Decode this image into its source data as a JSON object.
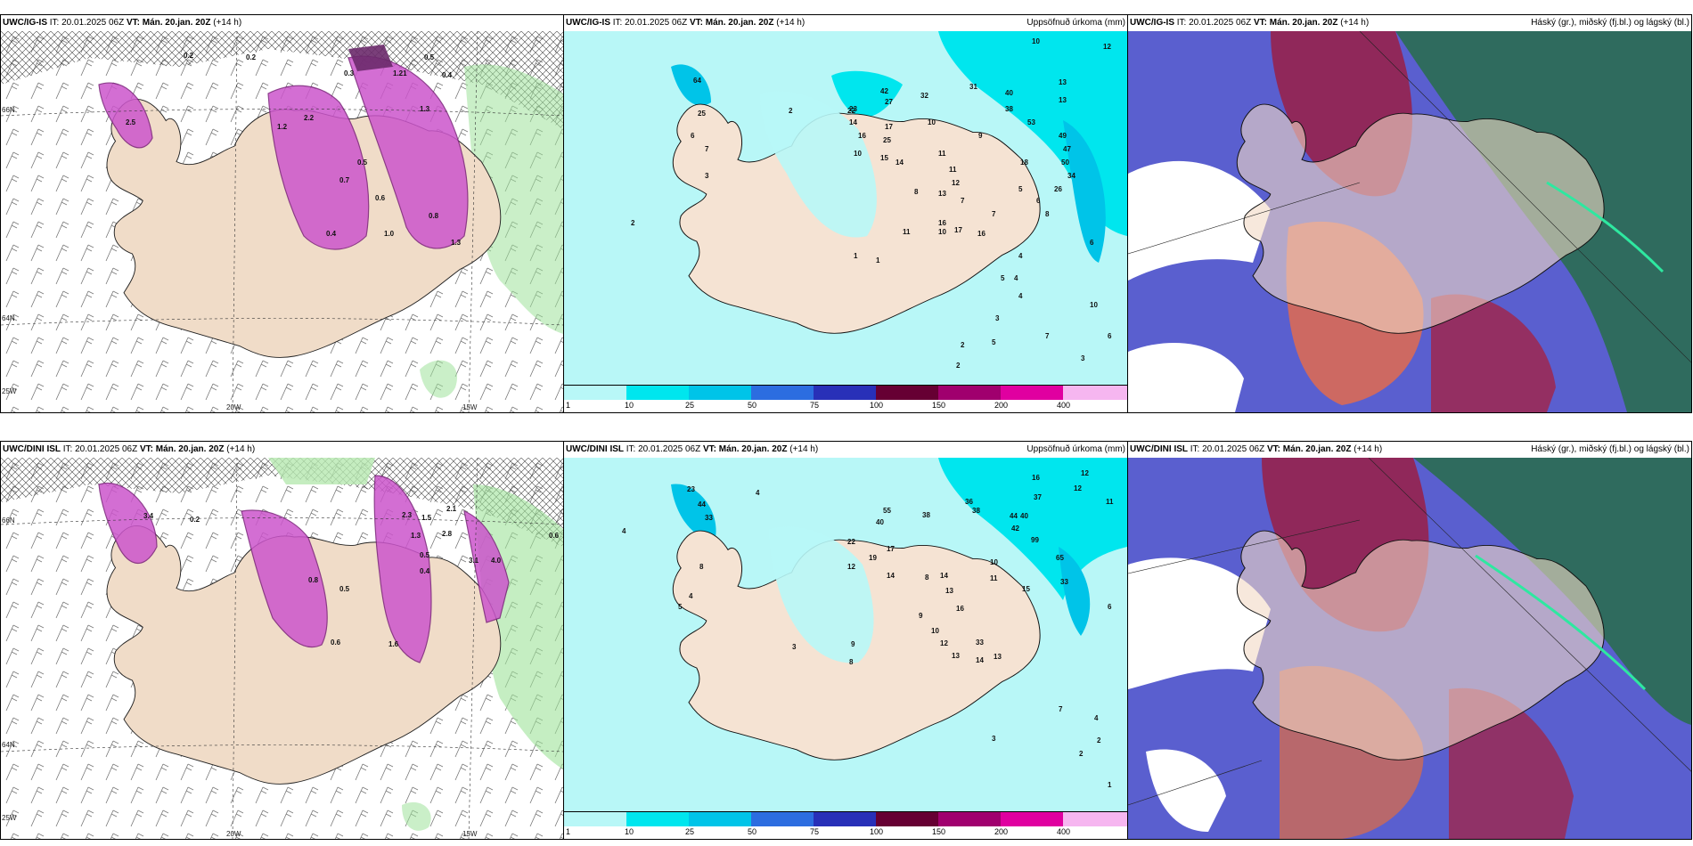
{
  "panels": [
    {
      "model": "UWC/IG-IS",
      "it": "IT: 20.01.2025 06Z",
      "vt_prefix": "VT:",
      "vt": "Mán. 20.jan. 20Z",
      "lead": "(+14 h)",
      "right": ""
    },
    {
      "model": "UWC/IG-IS",
      "it": "IT: 20.01.2025 06Z",
      "vt_prefix": "VT:",
      "vt": "Mán. 20.jan. 20Z",
      "lead": "(+14 h)",
      "right": "Uppsöfnuð úrkoma (mm)"
    },
    {
      "model": "UWC/IG-IS",
      "it": "IT: 20.01.2025 06Z",
      "vt_prefix": "VT:",
      "vt": "Mán. 20.jan. 20Z",
      "lead": "(+14 h)",
      "right": "Háský (gr.), miðský (fj.bl.) og lágský (bl.)"
    },
    {
      "model": "UWC/DINI ISL",
      "it": "IT: 20.01.2025 06Z",
      "vt_prefix": "VT:",
      "vt": "Mán. 20.jan. 20Z",
      "lead": "(+14 h)",
      "right": ""
    },
    {
      "model": "UWC/DINI ISL",
      "it": "IT: 20.01.2025 06Z",
      "vt_prefix": "VT:",
      "vt": "Mán. 20.jan. 20Z",
      "lead": "(+14 h)",
      "right": "Uppsöfnuð úrkoma (mm)"
    },
    {
      "model": "UWC/DINI ISL",
      "it": "IT: 20.01.2025 06Z",
      "vt_prefix": "VT:",
      "vt": "Mán. 20.jan. 20Z",
      "lead": "(+14 h)",
      "right": "Háský (gr.), miðský (fj.bl.) og lágský (bl.)"
    }
  ],
  "grid_labels": {
    "lat_66": "66N",
    "lat_64": "64N",
    "lat_64b": "64N",
    "lon_20": "20W",
    "lon_15": "15W",
    "lon_25": "25W"
  },
  "colorbar": {
    "labels": [
      "1",
      "10",
      "25",
      "50",
      "75",
      "100",
      "150",
      "200",
      "400"
    ],
    "colors": [
      "#b8f7f7",
      "#00e6ee",
      "#00c4e8",
      "#2c6de0",
      "#2830b8",
      "#660033",
      "#a0006e",
      "#e000a0",
      "#f6b6f0"
    ]
  },
  "precip_values_top": [
    "10",
    "12",
    "13",
    "13",
    "31",
    "40",
    "38",
    "53",
    "49",
    "47",
    "50",
    "34",
    "18",
    "26",
    "32",
    "27",
    "42",
    "23",
    "14",
    "16",
    "10",
    "17",
    "25",
    "15",
    "14",
    "13",
    "10",
    "11",
    "11",
    "12",
    "9",
    "8",
    "7",
    "6",
    "5",
    "4",
    "3",
    "2",
    "1",
    "64",
    "25",
    "2",
    "6",
    "7",
    "3",
    "2",
    "22",
    "16",
    "17",
    "16",
    "10",
    "11",
    "7",
    "8",
    "6",
    "4",
    "5",
    "10",
    "7",
    "6",
    "3",
    "2",
    "1",
    "4",
    "5"
  ],
  "precip_values_bottom": [
    "12",
    "16",
    "12",
    "37",
    "11",
    "36",
    "38",
    "44",
    "40",
    "42",
    "99",
    "65",
    "33",
    "4",
    "23",
    "44",
    "33",
    "8",
    "4",
    "40",
    "38",
    "55",
    "22",
    "19",
    "17",
    "12",
    "14",
    "8",
    "13",
    "14",
    "16",
    "10",
    "11",
    "9",
    "10",
    "12",
    "13",
    "14",
    "13",
    "33",
    "15",
    "5",
    "4",
    "3",
    "9",
    "8",
    "6",
    "2",
    "1",
    "7",
    "4",
    "2",
    "3"
  ],
  "wind_values_top": [
    "0.2",
    "0.2",
    "0.5",
    "0.4",
    "1.21",
    "0.3",
    "2.5",
    "1.3",
    "0.5",
    "0.7",
    "0.6",
    "1.0",
    "0.4",
    "2.2",
    "1.2",
    "0.8",
    "1.3"
  ],
  "wind_values_bottom": [
    "0.2",
    "2.3",
    "1.5",
    "2.8",
    "3.1",
    "4.0",
    "1.6",
    "0.5",
    "0.6",
    "0.4",
    "2.1",
    "1.3",
    "3.4",
    "0.6",
    "0.8",
    "0.5"
  ]
}
